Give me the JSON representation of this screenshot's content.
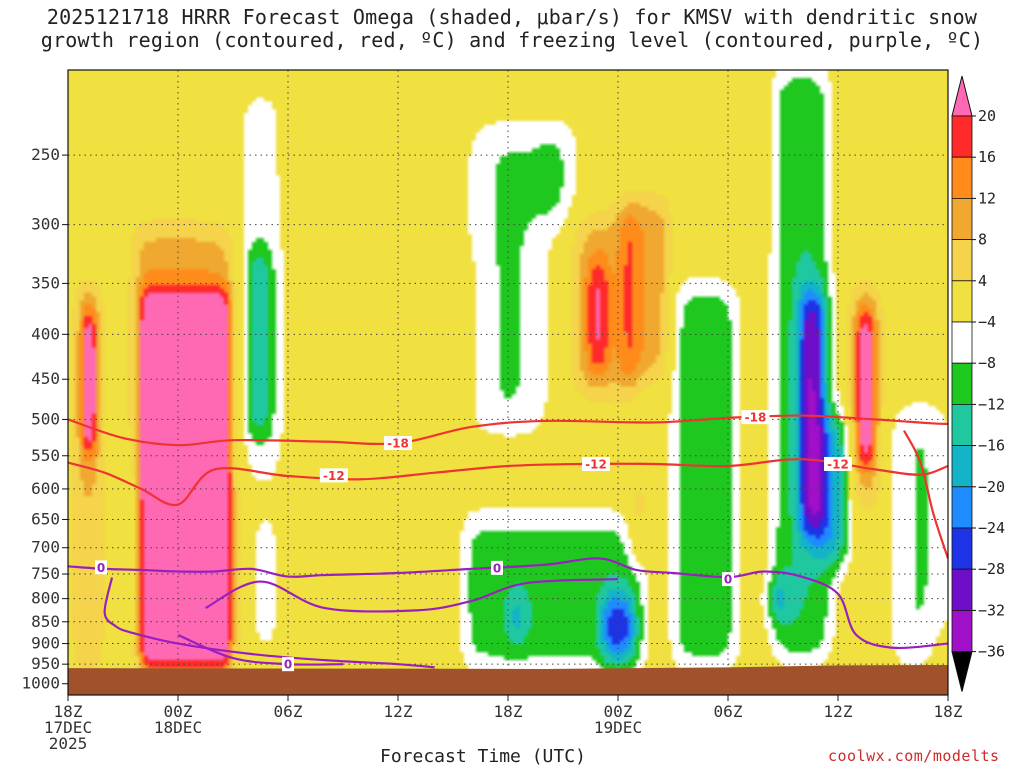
{
  "title_line1": "2025121718 HRRR Forecast Omega (shaded, μbar/s) for KMSV with dendritic snow",
  "title_line2": "growth region (contoured, red, ºC) and freezing level (contoured, purple, ºC)",
  "credit": "coolwx.com/modelts",
  "chart_data": {
    "type": "heatmap",
    "title": "2025121718 HRRR Forecast Omega (shaded, μbar/s) for KMSV with dendritic snow growth region (contoured, red, ºC) and freezing level (contoured, purple, ºC)",
    "xlabel": "Forecast Time (UTC)",
    "ylabel": "",
    "x_range_hours": [
      0,
      48
    ],
    "x_ticks": [
      {
        "hour": 0,
        "lines": [
          "18Z",
          "17DEC",
          "2025"
        ]
      },
      {
        "hour": 6,
        "lines": [
          "00Z",
          "18DEC"
        ]
      },
      {
        "hour": 12,
        "lines": [
          "06Z"
        ]
      },
      {
        "hour": 18,
        "lines": [
          "12Z"
        ]
      },
      {
        "hour": 24,
        "lines": [
          "18Z"
        ]
      },
      {
        "hour": 30,
        "lines": [
          "00Z",
          "19DEC"
        ]
      },
      {
        "hour": 36,
        "lines": [
          "06Z"
        ]
      },
      {
        "hour": 42,
        "lines": [
          "12Z"
        ]
      },
      {
        "hour": 48,
        "lines": [
          "18Z"
        ]
      }
    ],
    "y_axis": "pressure_hPa_log",
    "y_range": [
      200,
      1030
    ],
    "y_ticks": [
      250,
      300,
      350,
      400,
      450,
      500,
      550,
      600,
      650,
      700,
      750,
      800,
      850,
      900,
      950,
      1000
    ],
    "grid": true,
    "colorbar": {
      "units": "μbar/s",
      "levels": [
        20,
        16,
        12,
        8,
        4,
        -4,
        -8,
        -12,
        -16,
        -20,
        -24,
        -28,
        -32,
        -36
      ],
      "colors": [
        "#ff69b4",
        "#ff2a2a",
        "#ff8c1a",
        "#f0a830",
        "#f5d34a",
        "#f0e040",
        "#ffffff",
        "#1ec81e",
        "#20c8a0",
        "#14b4c8",
        "#1e8cff",
        "#1e32e6",
        "#6e0ec8",
        "#a010c8",
        "#a0a0a0",
        "#000000"
      ]
    },
    "blobs": [
      {
        "t0": 0.3,
        "t1": 1.9,
        "p0": 350,
        "p1": 960,
        "v": 8,
        "sigma": 0.18
      },
      {
        "t0": 0.8,
        "t1": 1.5,
        "p0": 380,
        "p1": 540,
        "v": 20,
        "sigma": 0.12
      },
      {
        "t0": 3.5,
        "t1": 9.3,
        "p0": 300,
        "p1": 960,
        "v": 10,
        "sigma": 0.3
      },
      {
        "t0": 4.0,
        "t1": 8.8,
        "p0": 360,
        "p1": 955,
        "v": 22,
        "sigma": 0.12
      },
      {
        "t0": 9.5,
        "t1": 11.5,
        "p0": 210,
        "p1": 600,
        "v": -8,
        "sigma": 0.6
      },
      {
        "t0": 9.8,
        "t1": 11.0,
        "p0": 320,
        "p1": 520,
        "v": -13,
        "sigma": 0.3
      },
      {
        "t0": 10.2,
        "t1": 11.3,
        "p0": 640,
        "p1": 920,
        "v": -9,
        "sigma": 0.4
      },
      {
        "t0": 2.8,
        "t1": 3.5,
        "p0": 560,
        "p1": 900,
        "v": -9,
        "sigma": 0.3
      },
      {
        "t0": 15.1,
        "t1": 15.7,
        "p0": 210,
        "p1": 480,
        "v": 6,
        "sigma": 0.4
      },
      {
        "t0": 20.5,
        "t1": 22.0,
        "p0": 330,
        "p1": 480,
        "v": 5,
        "sigma": 0.5
      },
      {
        "t0": 22.0,
        "t1": 26.0,
        "p0": 230,
        "p1": 520,
        "v": -9,
        "sigma": 0.6
      },
      {
        "t0": 26.0,
        "t1": 27.6,
        "p0": 230,
        "p1": 300,
        "v": -10,
        "sigma": 0.5
      },
      {
        "t0": 27.5,
        "t1": 31.0,
        "p0": 290,
        "p1": 470,
        "v": 9,
        "sigma": 0.25
      },
      {
        "t0": 28.4,
        "t1": 29.4,
        "p0": 330,
        "p1": 440,
        "v": 14,
        "sigma": 0.2
      },
      {
        "t0": 30.2,
        "t1": 32.8,
        "p0": 280,
        "p1": 450,
        "v": 11,
        "sigma": 0.25
      },
      {
        "t0": 30.8,
        "t1": 31.4,
        "p0": 600,
        "p1": 720,
        "v": 16,
        "sigma": 0.25
      },
      {
        "t0": 21.5,
        "t1": 31.5,
        "p0": 640,
        "p1": 965,
        "v": -10,
        "sigma": 0.3
      },
      {
        "t0": 24.2,
        "t1": 24.8,
        "p0": 800,
        "p1": 880,
        "v": -19,
        "sigma": 0.3
      },
      {
        "t0": 29.2,
        "t1": 30.8,
        "p0": 800,
        "p1": 930,
        "v": -22,
        "sigma": 0.25
      },
      {
        "t0": 33.0,
        "t1": 36.5,
        "p0": 350,
        "p1": 960,
        "v": -11,
        "sigma": 0.35
      },
      {
        "t0": 35.8,
        "t1": 37.3,
        "p0": 210,
        "p1": 320,
        "v": 6,
        "sigma": 0.5
      },
      {
        "t0": 38.5,
        "t1": 41.6,
        "p0": 200,
        "p1": 940,
        "v": -12,
        "sigma": 0.35
      },
      {
        "t0": 40.0,
        "t1": 41.2,
        "p0": 360,
        "p1": 680,
        "v": -23,
        "sigma": 0.2
      },
      {
        "t0": 41.2,
        "t1": 42.5,
        "p0": 500,
        "p1": 730,
        "v": -18,
        "sigma": 0.3
      },
      {
        "t0": 38.4,
        "t1": 39.0,
        "p0": 780,
        "p1": 820,
        "v": -34,
        "sigma": 0.3
      },
      {
        "t0": 42.6,
        "t1": 44.4,
        "p0": 355,
        "p1": 630,
        "v": 9,
        "sigma": 0.2
      },
      {
        "t0": 43.1,
        "t1": 43.9,
        "p0": 380,
        "p1": 560,
        "v": 20,
        "sigma": 0.15
      },
      {
        "t0": 45.0,
        "t1": 48.0,
        "p0": 480,
        "p1": 960,
        "v": -9,
        "sigma": 0.5
      },
      {
        "t0": 47.2,
        "t1": 48.0,
        "p0": 880,
        "p1": 950,
        "v": 9,
        "sigma": 0.4
      },
      {
        "t0": 41.8,
        "t1": 43.2,
        "p0": 210,
        "p1": 330,
        "v": 5,
        "sigma": 0.4
      }
    ],
    "terrain": {
      "color": "#a0522d",
      "points": [
        [
          0,
          960
        ],
        [
          26,
          962
        ],
        [
          36,
          958
        ],
        [
          42,
          953
        ],
        [
          48,
          952
        ]
      ]
    },
    "contours": [
      {
        "label": "-18",
        "color": "#ee3333",
        "points": [
          [
            0,
            500
          ],
          [
            3,
            525
          ],
          [
            6,
            535
          ],
          [
            9,
            528
          ],
          [
            14,
            530
          ],
          [
            18,
            532
          ],
          [
            22,
            510
          ],
          [
            26,
            502
          ],
          [
            32,
            504
          ],
          [
            36,
            498
          ],
          [
            40,
            495
          ],
          [
            44,
            500
          ],
          [
            47,
            505
          ],
          [
            48,
            506
          ]
        ],
        "label_at": [
          [
            18.0,
            532
          ],
          [
            37.5,
            497
          ]
        ]
      },
      {
        "label": "-12",
        "color": "#ee3333",
        "points": [
          [
            0,
            560
          ],
          [
            2,
            575
          ],
          [
            4,
            600
          ],
          [
            6,
            625
          ],
          [
            8,
            570
          ],
          [
            12,
            580
          ],
          [
            16,
            585
          ],
          [
            20,
            575
          ],
          [
            24,
            565
          ],
          [
            28,
            562
          ],
          [
            32,
            562
          ],
          [
            36,
            565
          ],
          [
            40,
            555
          ],
          [
            44,
            570
          ],
          [
            46.5,
            578
          ],
          [
            48,
            565
          ]
        ],
        "label_at": [
          [
            14.5,
            579
          ],
          [
            28.8,
            562
          ],
          [
            42.0,
            562
          ]
        ]
      },
      {
        "label": "-12",
        "color": "#ee3333",
        "points": [
          [
            45.6,
            515
          ],
          [
            46.5,
            560
          ],
          [
            47.2,
            640
          ],
          [
            48,
            720
          ]
        ],
        "label_at": []
      },
      {
        "label": "0",
        "color": "#9a1fbf",
        "points": [
          [
            0,
            735
          ],
          [
            2,
            740
          ],
          [
            4,
            742
          ],
          [
            6,
            745
          ],
          [
            8,
            745
          ],
          [
            10,
            740
          ],
          [
            12,
            755
          ],
          [
            14,
            752
          ],
          [
            18,
            748
          ],
          [
            22,
            740
          ],
          [
            26,
            732
          ],
          [
            29,
            720
          ],
          [
            31,
            742
          ],
          [
            33,
            748
          ],
          [
            36,
            756
          ],
          [
            38,
            745
          ],
          [
            40,
            755
          ],
          [
            42,
            790
          ],
          [
            43,
            880
          ],
          [
            45,
            910
          ],
          [
            48,
            900
          ]
        ],
        "label_at": [
          [
            1.8,
            737
          ],
          [
            23.4,
            738
          ],
          [
            36,
            760
          ]
        ]
      },
      {
        "label": "0",
        "color": "#9a1fbf",
        "points": [
          [
            2.4,
            757
          ],
          [
            2.0,
            830
          ],
          [
            2.6,
            860
          ],
          [
            3.5,
            875
          ],
          [
            6,
            900
          ],
          [
            10,
            925
          ],
          [
            14,
            940
          ],
          [
            18,
            950
          ],
          [
            20,
            958
          ]
        ],
        "label_at": []
      },
      {
        "label": "0",
        "color": "#9a1fbf",
        "points": [
          [
            7.5,
            820
          ],
          [
            10.5,
            765
          ],
          [
            14.0,
            820
          ],
          [
            19.0,
            825
          ],
          [
            22.0,
            805
          ],
          [
            25.0,
            768
          ],
          [
            30.0,
            760
          ]
        ],
        "label_at": []
      },
      {
        "label": "0",
        "color": "#9a1fbf",
        "points": [
          [
            6,
            880
          ],
          [
            9,
            935
          ],
          [
            12,
            950
          ],
          [
            15,
            950
          ]
        ],
        "label_at": [
          [
            12.0,
            950
          ]
        ]
      }
    ]
  }
}
